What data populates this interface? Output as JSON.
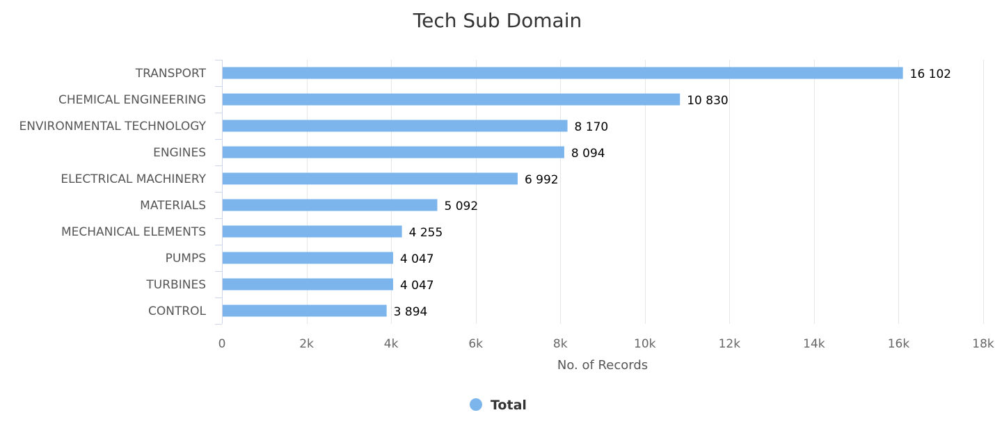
{
  "chart_data": {
    "type": "bar",
    "orientation": "horizontal",
    "title": "Tech Sub Domain",
    "xlabel": "No. of Records",
    "ylabel": "",
    "xlim": [
      0,
      18000
    ],
    "tick_values": [
      0,
      2000,
      4000,
      6000,
      8000,
      10000,
      12000,
      14000,
      16000,
      18000
    ],
    "tick_labels": [
      "0",
      "2k",
      "4k",
      "6k",
      "8k",
      "10k",
      "12k",
      "14k",
      "16k",
      "18k"
    ],
    "grid": true,
    "legend_position": "bottom-center",
    "categories": [
      "TRANSPORT",
      "CHEMICAL ENGINEERING",
      "ENVIRONMENTAL TECHNOLOGY",
      "ENGINES",
      "ELECTRICAL MACHINERY",
      "MATERIALS",
      "MECHANICAL ELEMENTS",
      "PUMPS",
      "TURBINES",
      "CONTROL"
    ],
    "series": [
      {
        "name": "Total",
        "color": "#7cb5ec",
        "values": [
          16102,
          10830,
          8170,
          8094,
          6992,
          5092,
          4255,
          4047,
          4047,
          3894
        ],
        "value_labels": [
          "16 102",
          "10 830",
          "8 170",
          "8 094",
          "6 992",
          "5 092",
          "4 255",
          "4 047",
          "4 047",
          "3 894"
        ]
      }
    ]
  }
}
